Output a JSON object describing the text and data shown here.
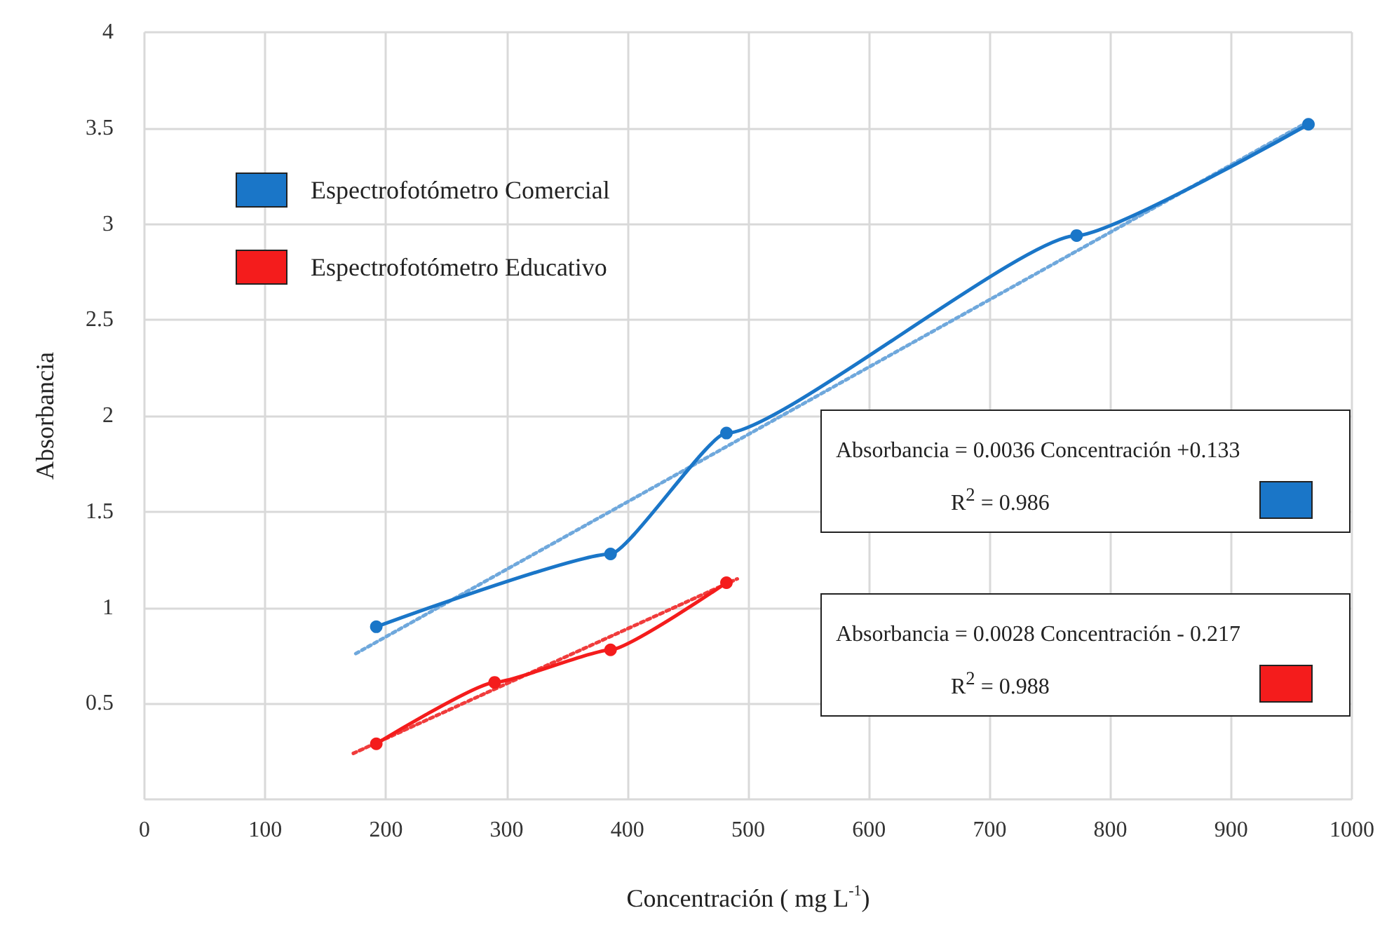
{
  "chart_data": {
    "type": "line",
    "xlabel": "Concentración ( mg L$^{-1}$)",
    "ylabel": "Absorbancia",
    "xlim": [
      0,
      1000
    ],
    "xticks": [
      0,
      100,
      200,
      300,
      400,
      500,
      600,
      700,
      800,
      900,
      1000
    ],
    "ylim": [
      0,
      4
    ],
    "yticks": [
      {
        "value": 0,
        "label": null
      },
      0.5,
      1,
      1.5,
      2,
      2.5,
      3,
      3.5,
      4
    ],
    "grid": true,
    "legend": "top left",
    "marker": "circle",
    "series": [
      {
        "name": "Espectrofotómetro Comercial",
        "color": "#1a76c8",
        "x": [
          192,
          386,
          482,
          772,
          964
        ],
        "values": [
          0.9,
          1.28,
          1.91,
          2.94,
          3.52
        ]
      },
      {
        "name": "Espectrofotómetro Educativo",
        "color": "#f41c1c",
        "x": [
          192,
          290,
          386,
          482
        ],
        "values": [
          0.29,
          0.61,
          0.78,
          1.13
        ]
      },
      {
        "type": "line",
        "color": "#6fa8dc",
        "x": [
          175,
          960
        ],
        "values": [
          0.76,
          3.52
        ],
        "marker": "none",
        "line_style": "dotted"
      },
      {
        "type": "line",
        "color": "#f03c3c",
        "x": [
          173,
          491
        ],
        "values": [
          0.24,
          1.15
        ],
        "marker": "none",
        "line_style": "dotted"
      }
    ],
    "annotations": [
      "Absorbancia = 0.0036 Concentración +0.133",
      "R$^{2}$ = 0.986",
      "Absorbancia = 0.0028 Concentración - 0.217",
      "R$^{2}$ = 0.988"
    ]
  }
}
